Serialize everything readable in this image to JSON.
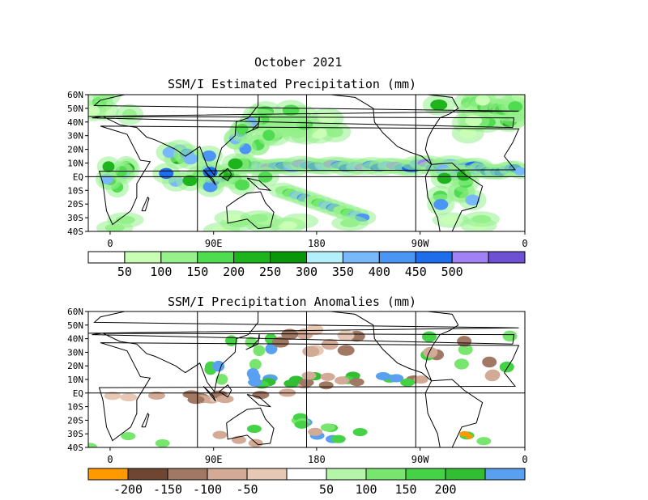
{
  "header": {
    "title": "October 2021"
  },
  "chart_data": [
    {
      "type": "heatmap",
      "title": "SSM/I Estimated Precipitation (mm)",
      "x_ticks": [
        "0",
        "90E",
        "180",
        "90W",
        "0"
      ],
      "y_ticks": [
        "60N",
        "50N",
        "40N",
        "30N",
        "20N",
        "10N",
        "EQ",
        "10S",
        "20S",
        "30S",
        "40S"
      ],
      "xlim": [
        0,
        360
      ],
      "ylim": [
        -40,
        60
      ],
      "colorbar": {
        "labels": [
          "50",
          "100",
          "150",
          "200",
          "250",
          "300",
          "350",
          "400",
          "450",
          "500"
        ],
        "colors": [
          "#ffffff",
          "#c8ffb4",
          "#96f08c",
          "#50dc50",
          "#1eb41e",
          "#0a960a",
          "#b4f0fa",
          "#78b9fa",
          "#4b96f5",
          "#1e6eeb",
          "#a082f5",
          "#6e50d2"
        ]
      }
    },
    {
      "type": "heatmap",
      "title": "SSM/I Precipitation Anomalies (mm)",
      "x_ticks": [
        "0",
        "90E",
        "180",
        "90W",
        "0"
      ],
      "y_ticks": [
        "60N",
        "50N",
        "40N",
        "30N",
        "20N",
        "10N",
        "EQ",
        "10S",
        "20S",
        "30S",
        "40S"
      ],
      "xlim": [
        0,
        360
      ],
      "ylim": [
        -40,
        60
      ],
      "colorbar": {
        "labels": [
          "-200",
          "-150",
          "-100",
          "-50",
          "50",
          "100",
          "150",
          "200"
        ],
        "colors": [
          "#ff9900",
          "#6e4632",
          "#a07864",
          "#d2aa96",
          "#e6c8b4",
          "#ffffff",
          "#b4f5aa",
          "#78e66e",
          "#46d246",
          "#32be32",
          "#5aa0f0"
        ]
      }
    }
  ]
}
